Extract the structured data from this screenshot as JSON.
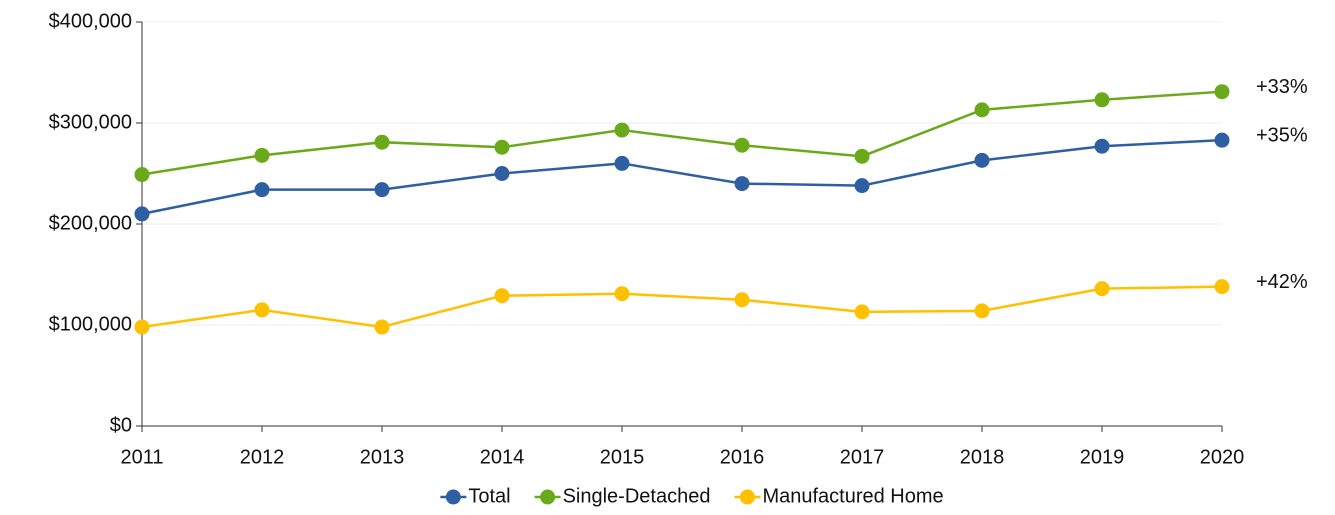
{
  "chart_data": {
    "type": "line",
    "categories": [
      "2011",
      "2012",
      "2013",
      "2014",
      "2015",
      "2016",
      "2017",
      "2018",
      "2019",
      "2020"
    ],
    "series": [
      {
        "name": "Total",
        "color": "#2e5fa3",
        "end_label": "+35%",
        "end_label_color": "#2e5fa3",
        "values": [
          210000,
          234000,
          234000,
          250000,
          260000,
          240000,
          238000,
          263000,
          277000,
          283000
        ]
      },
      {
        "name": "Single-Detached",
        "color": "#6aaa1a",
        "end_label": "+33%",
        "end_label_color": "#6aaa1a",
        "values": [
          249000,
          268000,
          281000,
          276000,
          293000,
          278000,
          267000,
          313000,
          323000,
          331000
        ]
      },
      {
        "name": "Manufactured Home",
        "color": "#ffc000",
        "end_label": "+42%",
        "end_label_color": "#c9a227",
        "values": [
          98000,
          115000,
          98000,
          129000,
          131000,
          125000,
          113000,
          114000,
          136000,
          138000
        ]
      }
    ],
    "ylim": [
      0,
      400000
    ],
    "yticks": [
      {
        "value": 0,
        "label": "$0"
      },
      {
        "value": 100000,
        "label": "$100,000"
      },
      {
        "value": 200000,
        "label": "$200,000"
      },
      {
        "value": 300000,
        "label": "$300,000"
      },
      {
        "value": 400000,
        "label": "$400,000"
      }
    ],
    "grid": true,
    "legend": "bottom"
  }
}
